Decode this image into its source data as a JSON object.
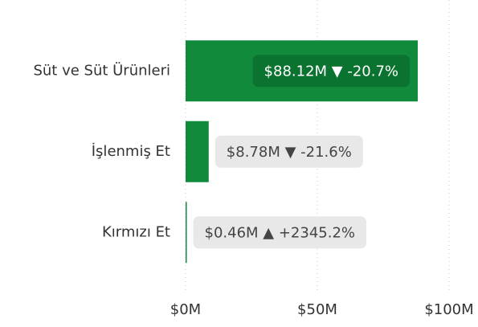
{
  "chart_data": {
    "type": "bar",
    "orientation": "horizontal",
    "categories": [
      "Süt ve Süt Ürünleri",
      "İşlenmiş Et",
      "Kırmızı Et"
    ],
    "values": [
      88.12,
      8.78,
      0.46
    ],
    "value_labels": [
      "$88.12M ▼ -20.7%",
      "$8.78M ▼ -21.6%",
      "$0.46M ▲ +2345.2%"
    ],
    "color": "#118a3b",
    "xlim": [
      0,
      100
    ],
    "xticks": [
      {
        "value": 0,
        "label": "$0M"
      },
      {
        "value": 50,
        "label": "$50M"
      },
      {
        "value": 100,
        "label": "$100M"
      }
    ],
    "grid": true
  }
}
